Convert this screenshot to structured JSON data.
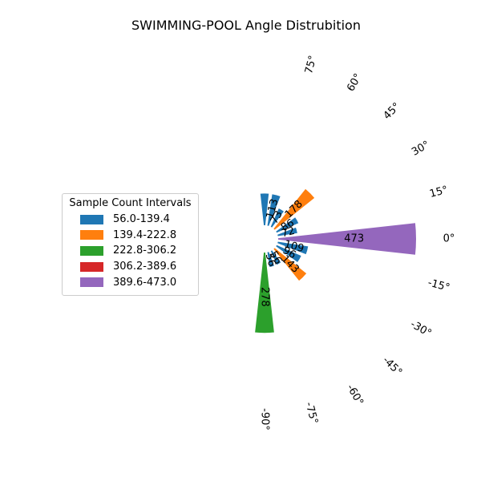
{
  "chart_data": {
    "type": "polar-bar",
    "title": "SWIMMING-POOL Angle Distrubition",
    "angles": [
      90,
      75,
      60,
      45,
      30,
      15,
      0,
      -15,
      -30,
      -45,
      -60,
      -75,
      -90
    ],
    "angle_labels": [
      "",
      "75°",
      "60°",
      "45°",
      "30°",
      "15°",
      "0°",
      "-15°",
      "-30°",
      "-45°",
      "-60°",
      "-75°",
      "-90°"
    ],
    "values": [
      113,
      113,
      73,
      178,
      86,
      72,
      473,
      109,
      96,
      143,
      56,
      56,
      278
    ],
    "bar_value_labels": [
      "",
      "113",
      "73",
      "178",
      "86",
      "72",
      "473",
      "109",
      "96",
      "143",
      "56",
      "56",
      "278"
    ],
    "legend": {
      "title": "Sample Count Intervals",
      "placement": "left",
      "items": [
        {
          "label": "56.0-139.4",
          "color": "#1f77b4"
        },
        {
          "label": "139.4-222.8",
          "color": "#ff7f0e"
        },
        {
          "label": "222.8-306.2",
          "color": "#2ca02c"
        },
        {
          "label": "306.2-389.6",
          "color": "#d62728"
        },
        {
          "label": "389.6-473.0",
          "color": "#9467bd"
        }
      ]
    }
  }
}
